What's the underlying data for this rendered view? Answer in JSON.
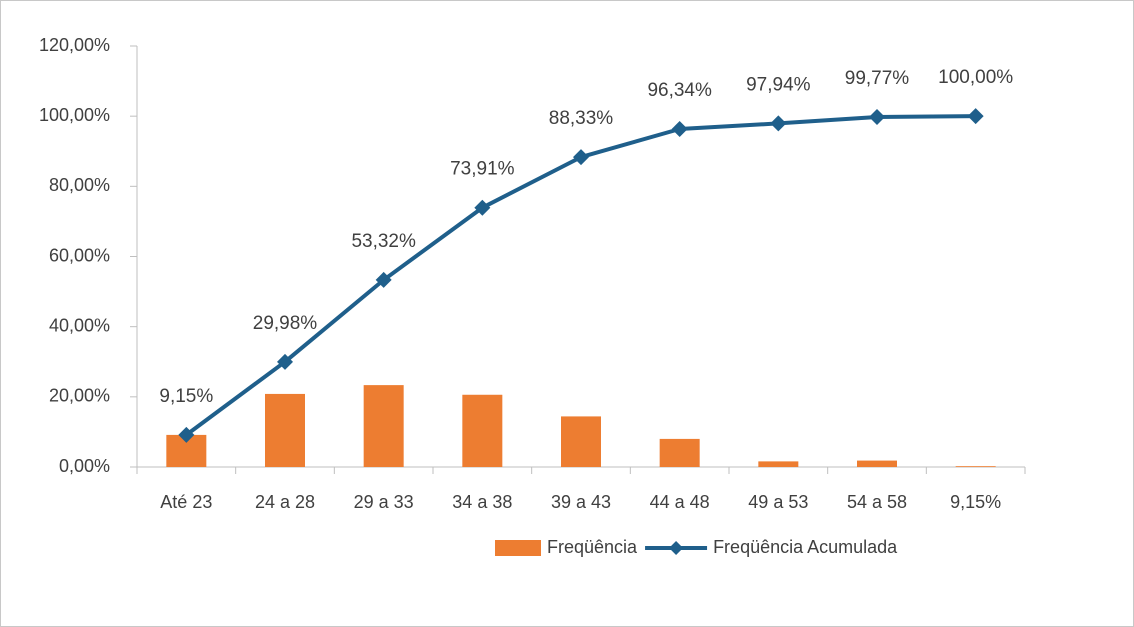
{
  "chart_data": {
    "type": "bar-line",
    "categories": [
      "Até 23",
      "24 a 28",
      "29 a 33",
      "34 a 38",
      "39 a 43",
      "44 a 48",
      "49 a 53",
      "54 a 58",
      "9,15%"
    ],
    "series": [
      {
        "name": "Freqüência",
        "type": "bar",
        "color": "#ed7d31",
        "values": [
          9.15,
          20.83,
          23.34,
          20.59,
          14.42,
          8.01,
          1.6,
          1.83,
          0.23
        ]
      },
      {
        "name": "Freqüência Acumulada",
        "type": "line",
        "color": "#1f5f8b",
        "values": [
          9.15,
          29.98,
          53.32,
          73.91,
          88.33,
          96.34,
          97.94,
          99.77,
          100
        ],
        "value_labels": [
          "9,15%",
          "29,98%",
          "53,32%",
          "73,91%",
          "88,33%",
          "96,34%",
          "97,94%",
          "99,77%",
          "100,00%"
        ]
      }
    ],
    "ylim": [
      0,
      120
    ],
    "yticks": [
      {
        "value": 0,
        "label": "0,00%"
      },
      {
        "value": 20,
        "label": "20,00%"
      },
      {
        "value": 40,
        "label": "40,00%"
      },
      {
        "value": 60,
        "label": "60,00%"
      },
      {
        "value": 80,
        "label": "80,00%"
      },
      {
        "value": 100,
        "label": "100,00%"
      },
      {
        "value": 120,
        "label": "120,00%"
      }
    ],
    "grid": false,
    "legend": "bottom"
  }
}
